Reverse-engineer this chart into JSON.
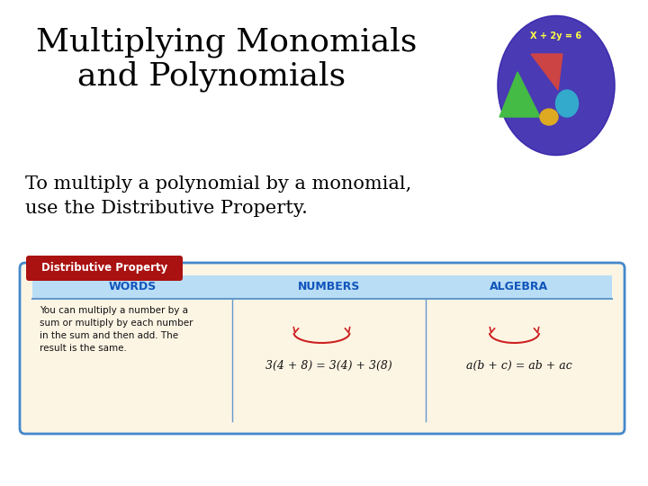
{
  "bg_color": "#ffffff",
  "title_line1": "Multiplying Monomials",
  "title_line2": "    and Polynomials",
  "title_fontsize": 26,
  "title_color": "#000000",
  "body_text_line1": "To multiply a polynomial by a monomial,",
  "body_text_line2": "use the Distributive Property.",
  "body_fontsize": 15,
  "table_bg": "#fdf5e4",
  "table_border_color": "#4488cc",
  "table_header_bg": "#b8ddf5",
  "table_label_bg": "#aa1111",
  "table_label_text": "Distributive Property",
  "table_label_text_color": "#ffffff",
  "col_headers": [
    "WORDS",
    "NUMBERS",
    "ALGEBRA"
  ],
  "col_header_color": "#1155bb",
  "words_text": "You can multiply a number by a\nsum or multiply by each number\nin the sum and then add. The\nresult is the same.",
  "numbers_text": "3(4 + 8) = 3(4) + 3(8)",
  "algebra_text": "a(b + c) = ab + ac",
  "arc_color": "#cc2222",
  "divider_color": "#6699cc",
  "circle_color": "#5544bb"
}
